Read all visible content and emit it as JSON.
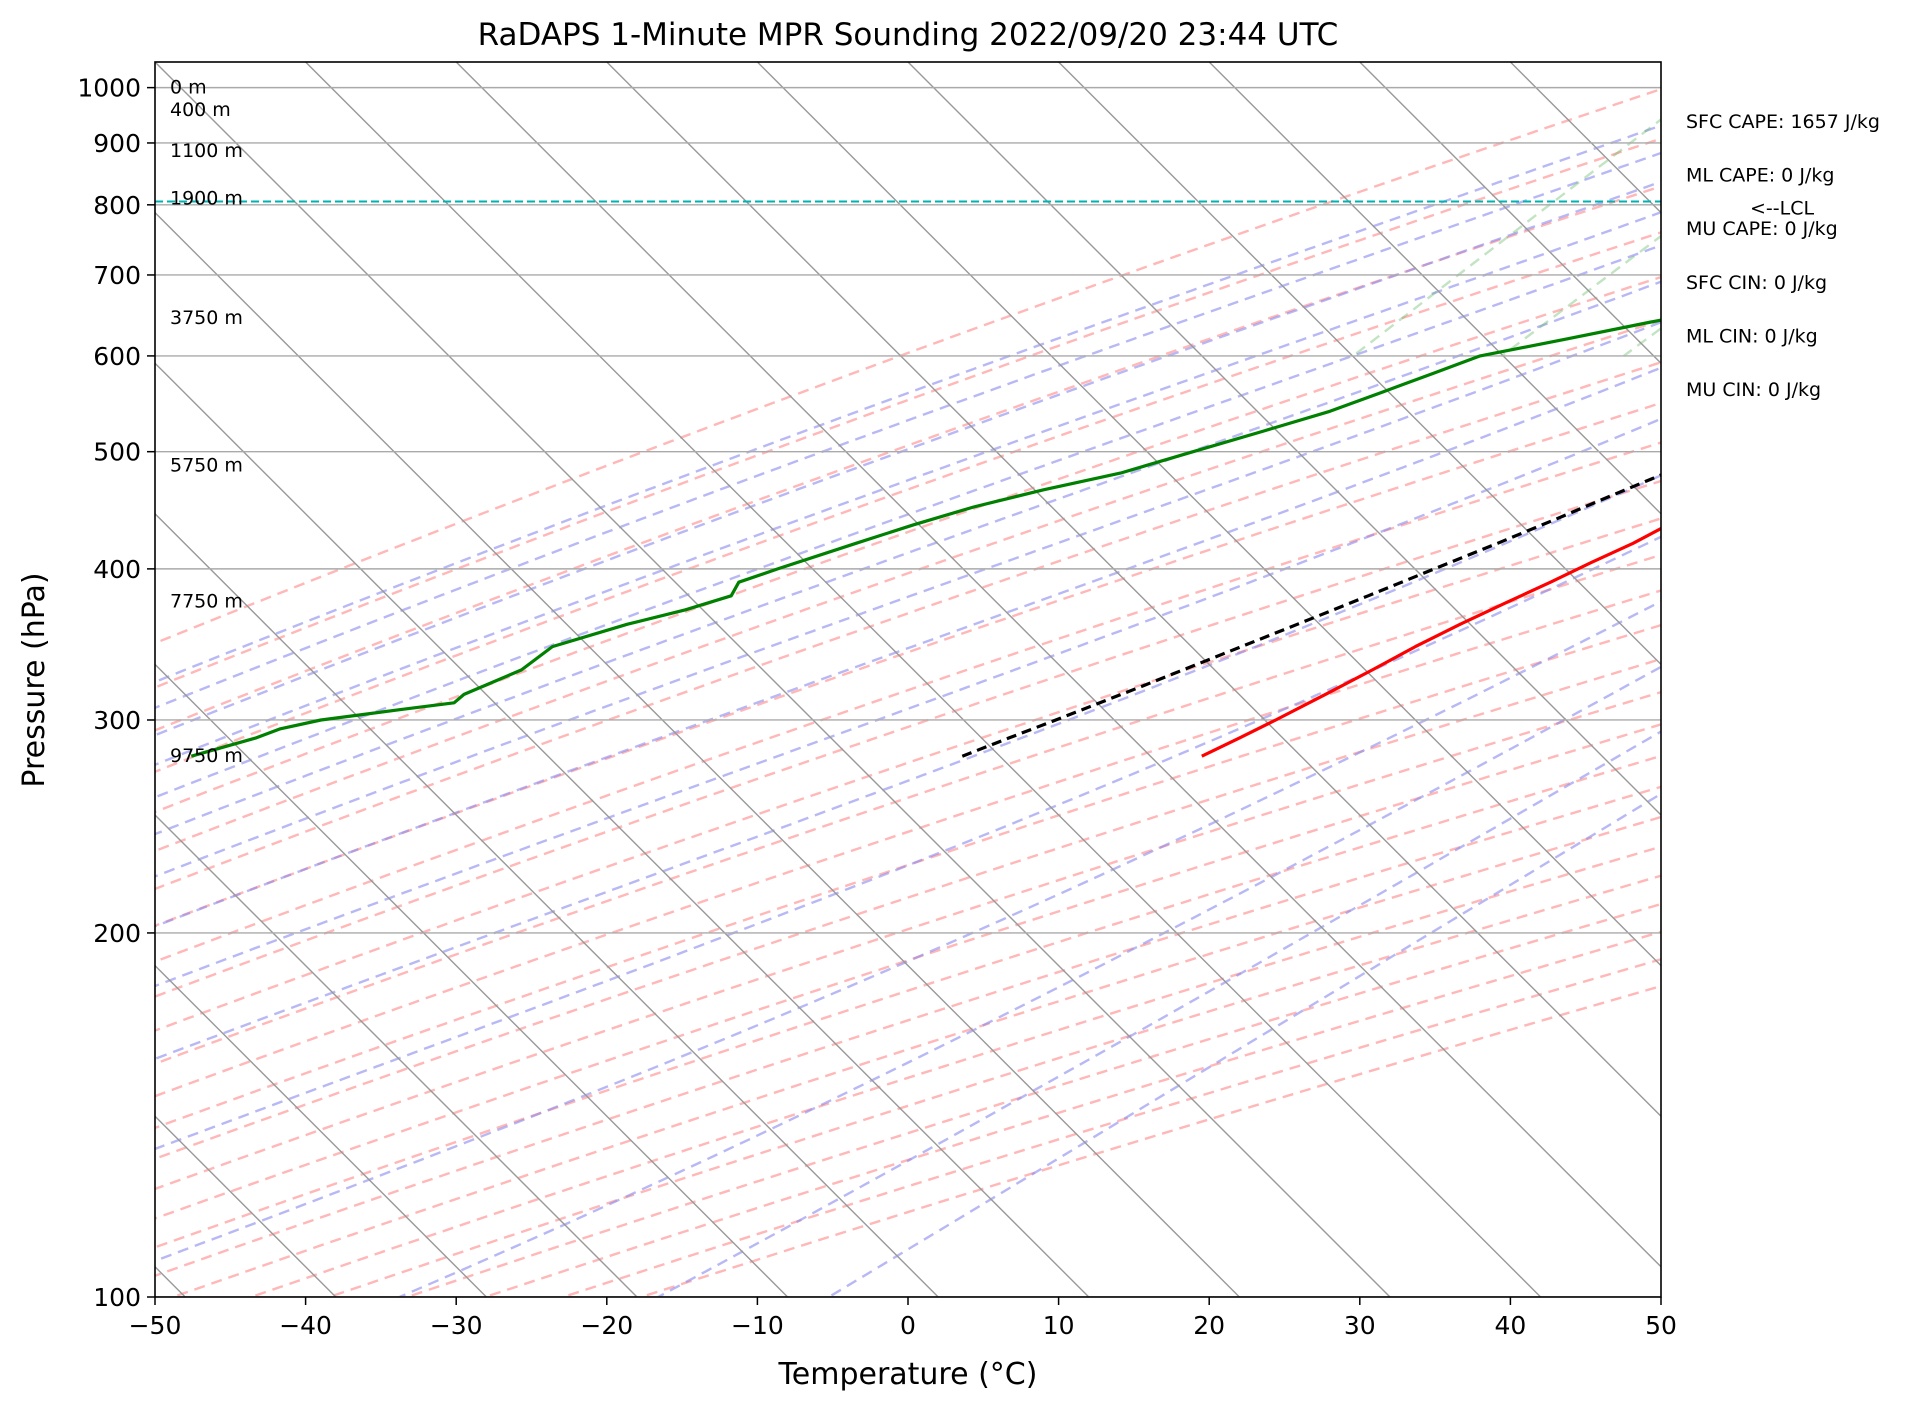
{
  "chart_data": {
    "type": "line",
    "title": "RaDAPS 1-Minute MPR Sounding 2022/09/20 23:44 UTC",
    "xlabel": "Temperature (°C)",
    "ylabel": "Pressure (hPa)",
    "xlim": [
      -50,
      50
    ],
    "ylim": [
      1050,
      100
    ],
    "y_scale": "log",
    "skew_t": true,
    "grid": true,
    "x_ticks": [
      -50,
      -40,
      -30,
      -20,
      -10,
      0,
      10,
      20,
      30,
      40,
      50
    ],
    "x_tick_labels": [
      "−50",
      "−40",
      "−30",
      "−20",
      "−10",
      "0",
      "10",
      "20",
      "30",
      "40",
      "50"
    ],
    "y_ticks": [
      100,
      200,
      300,
      400,
      500,
      600,
      700,
      800,
      900,
      1000
    ],
    "y_tick_labels": [
      "100",
      "200",
      "300",
      "400",
      "500",
      "600",
      "700",
      "800",
      "900",
      "1000"
    ],
    "series": [
      {
        "color": "#ff0000",
        "pressure": [
          990,
          970,
          950,
          920,
          880,
          860,
          840,
          820,
          800,
          780,
          760,
          740,
          720,
          700,
          680,
          660,
          640,
          620,
          600,
          580,
          560,
          540,
          520,
          500,
          480,
          465,
          450,
          435,
          420,
          405,
          390,
          375,
          360,
          345,
          330,
          315,
          300,
          290,
          280
        ],
        "values": [
          33.2,
          32.3,
          30.6,
          27.8,
          24.0,
          22.8,
          21.8,
          20.8,
          19.6,
          18.6,
          17.6,
          16.6,
          15.8,
          15.1,
          13.9,
          12.2,
          10.7,
          9.5,
          8.4,
          7.6,
          7.1,
          6.3,
          4.9,
          3.4,
          2.1,
          1.5,
          0.4,
          -0.8,
          -1.9,
          -3.4,
          -4.8,
          -6.4,
          -8.0,
          -9.5,
          -10.8,
          -12.3,
          -13.9,
          -15.1,
          -16.4
        ]
      },
      {
        "color": "#008000",
        "pressure": [
          990,
          980,
          970,
          960,
          950,
          940,
          920,
          900,
          890,
          880,
          870,
          860,
          850,
          840,
          830,
          820,
          810,
          800,
          790,
          780,
          760,
          740,
          720,
          700,
          680,
          660,
          640,
          620,
          600,
          580,
          560,
          540,
          520,
          500,
          480,
          465,
          450,
          435,
          420,
          400,
          390,
          380,
          370,
          360,
          345,
          330,
          315,
          310,
          306,
          300,
          295,
          290,
          280
        ],
        "values": [
          19.6,
          17.8,
          16.8,
          17.4,
          16.8,
          16.4,
          17.0,
          17.8,
          18.6,
          18.9,
          17.8,
          17.5,
          17.4,
          17.6,
          17.8,
          17.7,
          17.0,
          16.2,
          14.9,
          12.8,
          8.9,
          5.1,
          1.1,
          -2.6,
          -6.5,
          -10.8,
          -15.4,
          -19.8,
          -24.5,
          -26.5,
          -28.6,
          -30.8,
          -33.9,
          -37.2,
          -40.6,
          -44.6,
          -48.1,
          -50.9,
          -53.5,
          -57.0,
          -58.7,
          -58.3,
          -60.4,
          -63.3,
          -66.8,
          -67.3,
          -69.5,
          -69.6,
          -72.7,
          -77.3,
          -79.4,
          -80.4,
          -83.5
        ]
      },
      {
        "color": "#000000",
        "dashed": true,
        "pressure": [
          990,
          900,
          850,
          810,
          800,
          780,
          760,
          740,
          720,
          700,
          680,
          660,
          640,
          620,
          600,
          580,
          560,
          540,
          520,
          500,
          480,
          460,
          440,
          420,
          400,
          380,
          360,
          340,
          320,
          300,
          290,
          280
        ],
        "values": [
          33.6,
          25.8,
          21.5,
          20.6,
          19.8,
          18.4,
          17.0,
          15.8,
          14.4,
          13.2,
          11.8,
          10.4,
          9.0,
          7.5,
          6.0,
          4.4,
          2.8,
          1.1,
          -0.7,
          -2.5,
          -4.4,
          -6.5,
          -8.6,
          -10.9,
          -13.4,
          -16.0,
          -18.8,
          -21.8,
          -25.0,
          -28.5,
          -30.4,
          -32.3
        ]
      }
    ],
    "lcl": {
      "pressure": 805,
      "label": "<--LCL",
      "color": "#00b3b3"
    },
    "height_labels": [
      {
        "text": "0 m",
        "pressure": 1000
      },
      {
        "text": "400 m",
        "pressure": 958
      },
      {
        "text": "1100 m",
        "pressure": 886
      },
      {
        "text": "1900 m",
        "pressure": 810
      },
      {
        "text": "3750 m",
        "pressure": 645
      },
      {
        "text": "5750 m",
        "pressure": 487
      },
      {
        "text": "7750 m",
        "pressure": 376
      },
      {
        "text": "9750 m",
        "pressure": 280
      }
    ],
    "stats": [
      "SFC CAPE: 1657 J/kg",
      "ML CAPE: 0 J/kg",
      "MU CAPE: 0 J/kg",
      "SFC CIN: 0 J/kg",
      "ML CIN: 0 J/kg",
      "MU CIN: 0 J/kg"
    ]
  }
}
